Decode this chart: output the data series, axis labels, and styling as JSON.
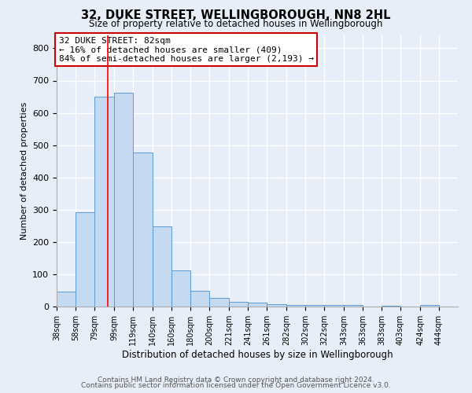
{
  "title": "32, DUKE STREET, WELLINGBOROUGH, NN8 2HL",
  "subtitle": "Size of property relative to detached houses in Wellingborough",
  "xlabel": "Distribution of detached houses by size in Wellingborough",
  "ylabel": "Number of detached properties",
  "bar_labels": [
    "38sqm",
    "58sqm",
    "79sqm",
    "99sqm",
    "119sqm",
    "140sqm",
    "160sqm",
    "180sqm",
    "200sqm",
    "221sqm",
    "241sqm",
    "261sqm",
    "282sqm",
    "302sqm",
    "322sqm",
    "343sqm",
    "363sqm",
    "383sqm",
    "403sqm",
    "424sqm",
    "444sqm"
  ],
  "bar_values": [
    47,
    293,
    651,
    663,
    477,
    249,
    113,
    49,
    27,
    15,
    13,
    7,
    4,
    5,
    4,
    6,
    1,
    3,
    1,
    5,
    1
  ],
  "bar_color": "#c5d9f1",
  "bar_edge_color": "#5b9bd5",
  "ylim": [
    0,
    840
  ],
  "yticks": [
    0,
    100,
    200,
    300,
    400,
    500,
    600,
    700,
    800
  ],
  "red_line_x": 82,
  "annotation_title": "32 DUKE STREET: 82sqm",
  "annotation_line1": "← 16% of detached houses are smaller (409)",
  "annotation_line2": "84% of semi-detached houses are larger (2,193) →",
  "annotation_box_color": "#ffffff",
  "annotation_box_edge_color": "#cc0000",
  "footer_line1": "Contains HM Land Registry data © Crown copyright and database right 2024.",
  "footer_line2": "Contains public sector information licensed under the Open Government Licence v3.0.",
  "background_color": "#e8eef8",
  "plot_bg_color": "#e8eef8",
  "grid_color": "#ffffff",
  "bin_edges": [
    28,
    48,
    68,
    89,
    109,
    130,
    150,
    170,
    190,
    211,
    231,
    251,
    272,
    292,
    312,
    333,
    353,
    373,
    393,
    414,
    434,
    454
  ]
}
